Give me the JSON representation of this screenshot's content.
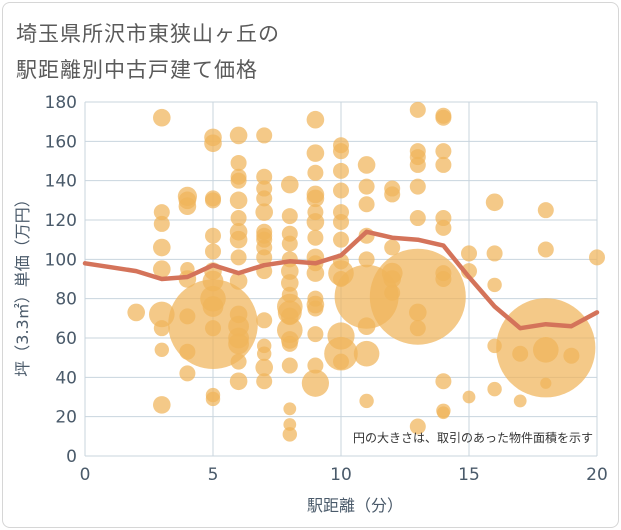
{
  "title_line1": "埼玉県所沢市東狭山ヶ丘の",
  "title_line2": "駅距離別中古戸建て価格",
  "chart_data": {
    "type": "scatter",
    "xlabel": "駅距離（分）",
    "ylabel": "坪（3.3㎡）単価（万円）",
    "note": "円の大きさは、取引のあった物件面積を示す",
    "xlim": [
      0,
      20
    ],
    "ylim": [
      0,
      180
    ],
    "x_ticks": [
      0,
      5,
      10,
      15,
      20
    ],
    "y_ticks": [
      0,
      20,
      40,
      60,
      80,
      100,
      120,
      140,
      160,
      180
    ],
    "grid": true,
    "colors": {
      "bubble": "#f0b45a",
      "trend": "#d4735a",
      "grid": "#c8d4de",
      "axis_text": "#4a5a6a"
    },
    "trend": {
      "x": [
        0,
        1,
        2,
        3,
        4,
        5,
        6,
        7,
        8,
        9,
        10,
        11,
        12,
        13,
        14,
        15,
        16,
        17,
        18,
        19,
        20
      ],
      "y": [
        98,
        96,
        94,
        90,
        91,
        97,
        93,
        97,
        99,
        98,
        102,
        114,
        111,
        110,
        107,
        91,
        76,
        65,
        67,
        66,
        73
      ]
    },
    "points": [
      {
        "x": 2,
        "y": 73,
        "size": 1.1
      },
      {
        "x": 3,
        "y": 172,
        "size": 1.1
      },
      {
        "x": 3,
        "y": 124,
        "size": 1.0
      },
      {
        "x": 3,
        "y": 118,
        "size": 1.0
      },
      {
        "x": 3,
        "y": 106,
        "size": 1.1
      },
      {
        "x": 3,
        "y": 95,
        "size": 1.1
      },
      {
        "x": 3,
        "y": 72,
        "size": 1.6
      },
      {
        "x": 3,
        "y": 65,
        "size": 1.0
      },
      {
        "x": 3,
        "y": 54,
        "size": 0.9
      },
      {
        "x": 3,
        "y": 26,
        "size": 1.1
      },
      {
        "x": 4,
        "y": 132,
        "size": 1.2
      },
      {
        "x": 4,
        "y": 130,
        "size": 1.1
      },
      {
        "x": 4,
        "y": 127,
        "size": 1.1
      },
      {
        "x": 4,
        "y": 95,
        "size": 0.9
      },
      {
        "x": 4,
        "y": 90,
        "size": 1.1
      },
      {
        "x": 4,
        "y": 71,
        "size": 1.0
      },
      {
        "x": 4,
        "y": 53,
        "size": 1.0
      },
      {
        "x": 4,
        "y": 42,
        "size": 1.0
      },
      {
        "x": 5,
        "y": 162,
        "size": 1.1
      },
      {
        "x": 5,
        "y": 159,
        "size": 1.1
      },
      {
        "x": 5,
        "y": 131,
        "size": 1.0
      },
      {
        "x": 5,
        "y": 130,
        "size": 1.0
      },
      {
        "x": 5,
        "y": 112,
        "size": 1.0
      },
      {
        "x": 5,
        "y": 104,
        "size": 1.0
      },
      {
        "x": 5,
        "y": 94,
        "size": 1.1
      },
      {
        "x": 5,
        "y": 89,
        "size": 1.3
      },
      {
        "x": 5,
        "y": 80,
        "size": 1.6
      },
      {
        "x": 5,
        "y": 76,
        "size": 1.3
      },
      {
        "x": 5,
        "y": 67,
        "size": 5.6
      },
      {
        "x": 5,
        "y": 65,
        "size": 1.0
      },
      {
        "x": 5,
        "y": 31,
        "size": 0.9
      },
      {
        "x": 5,
        "y": 29,
        "size": 0.9
      },
      {
        "x": 6,
        "y": 163,
        "size": 1.1
      },
      {
        "x": 6,
        "y": 149,
        "size": 1.0
      },
      {
        "x": 6,
        "y": 142,
        "size": 1.0
      },
      {
        "x": 6,
        "y": 140,
        "size": 1.0
      },
      {
        "x": 6,
        "y": 130,
        "size": 1.1
      },
      {
        "x": 6,
        "y": 121,
        "size": 1.0
      },
      {
        "x": 6,
        "y": 114,
        "size": 1.1
      },
      {
        "x": 6,
        "y": 110,
        "size": 1.1
      },
      {
        "x": 6,
        "y": 101,
        "size": 1.0
      },
      {
        "x": 6,
        "y": 89,
        "size": 1.1
      },
      {
        "x": 6,
        "y": 72,
        "size": 1.1
      },
      {
        "x": 6,
        "y": 66,
        "size": 1.3
      },
      {
        "x": 6,
        "y": 60,
        "size": 1.3
      },
      {
        "x": 6,
        "y": 57,
        "size": 1.3
      },
      {
        "x": 6,
        "y": 48,
        "size": 1.0
      },
      {
        "x": 6,
        "y": 38,
        "size": 1.1
      },
      {
        "x": 7,
        "y": 163,
        "size": 1.0
      },
      {
        "x": 7,
        "y": 142,
        "size": 1.0
      },
      {
        "x": 7,
        "y": 136,
        "size": 1.0
      },
      {
        "x": 7,
        "y": 131,
        "size": 1.0
      },
      {
        "x": 7,
        "y": 124,
        "size": 1.1
      },
      {
        "x": 7,
        "y": 114,
        "size": 1.0
      },
      {
        "x": 7,
        "y": 112,
        "size": 1.0
      },
      {
        "x": 7,
        "y": 110,
        "size": 1.0
      },
      {
        "x": 7,
        "y": 106,
        "size": 1.0
      },
      {
        "x": 7,
        "y": 101,
        "size": 1.0
      },
      {
        "x": 7,
        "y": 94,
        "size": 1.0
      },
      {
        "x": 7,
        "y": 69,
        "size": 1.0
      },
      {
        "x": 7,
        "y": 56,
        "size": 0.9
      },
      {
        "x": 7,
        "y": 52,
        "size": 0.9
      },
      {
        "x": 7,
        "y": 45,
        "size": 1.1
      },
      {
        "x": 7,
        "y": 38,
        "size": 1.0
      },
      {
        "x": 8,
        "y": 138,
        "size": 1.1
      },
      {
        "x": 8,
        "y": 122,
        "size": 1.0
      },
      {
        "x": 8,
        "y": 113,
        "size": 1.0
      },
      {
        "x": 8,
        "y": 108,
        "size": 1.0
      },
      {
        "x": 8,
        "y": 100,
        "size": 1.0
      },
      {
        "x": 8,
        "y": 94,
        "size": 1.1
      },
      {
        "x": 8,
        "y": 88,
        "size": 1.1
      },
      {
        "x": 8,
        "y": 82,
        "size": 1.0
      },
      {
        "x": 8,
        "y": 76,
        "size": 1.6
      },
      {
        "x": 8,
        "y": 73,
        "size": 1.5
      },
      {
        "x": 8,
        "y": 71,
        "size": 1.1
      },
      {
        "x": 8,
        "y": 64,
        "size": 1.6
      },
      {
        "x": 8,
        "y": 59,
        "size": 1.1
      },
      {
        "x": 8,
        "y": 57,
        "size": 1.0
      },
      {
        "x": 8,
        "y": 46,
        "size": 1.0
      },
      {
        "x": 8,
        "y": 24,
        "size": 0.8
      },
      {
        "x": 8,
        "y": 16,
        "size": 0.8
      },
      {
        "x": 8,
        "y": 11,
        "size": 0.9
      },
      {
        "x": 9,
        "y": 171,
        "size": 1.1
      },
      {
        "x": 9,
        "y": 154,
        "size": 1.1
      },
      {
        "x": 9,
        "y": 144,
        "size": 1.0
      },
      {
        "x": 9,
        "y": 133,
        "size": 1.1
      },
      {
        "x": 9,
        "y": 131,
        "size": 1.1
      },
      {
        "x": 9,
        "y": 124,
        "size": 1.0
      },
      {
        "x": 9,
        "y": 119,
        "size": 1.1
      },
      {
        "x": 9,
        "y": 111,
        "size": 1.0
      },
      {
        "x": 9,
        "y": 101,
        "size": 1.1
      },
      {
        "x": 9,
        "y": 98,
        "size": 1.0
      },
      {
        "x": 9,
        "y": 93,
        "size": 1.1
      },
      {
        "x": 9,
        "y": 80,
        "size": 1.0
      },
      {
        "x": 9,
        "y": 77,
        "size": 1.1
      },
      {
        "x": 9,
        "y": 75,
        "size": 1.0
      },
      {
        "x": 9,
        "y": 62,
        "size": 1.0
      },
      {
        "x": 9,
        "y": 46,
        "size": 1.0
      },
      {
        "x": 9,
        "y": 37,
        "size": 1.7
      },
      {
        "x": 10,
        "y": 158,
        "size": 1.0
      },
      {
        "x": 10,
        "y": 155,
        "size": 1.0
      },
      {
        "x": 10,
        "y": 145,
        "size": 1.0
      },
      {
        "x": 10,
        "y": 135,
        "size": 1.0
      },
      {
        "x": 10,
        "y": 124,
        "size": 1.0
      },
      {
        "x": 10,
        "y": 119,
        "size": 1.0
      },
      {
        "x": 10,
        "y": 110,
        "size": 1.0
      },
      {
        "x": 10,
        "y": 99,
        "size": 1.0
      },
      {
        "x": 10,
        "y": 93,
        "size": 1.6
      },
      {
        "x": 10,
        "y": 90,
        "size": 1.0
      },
      {
        "x": 10,
        "y": 61,
        "size": 1.7
      },
      {
        "x": 10,
        "y": 52,
        "size": 2.1
      },
      {
        "x": 10,
        "y": 48,
        "size": 1.0
      },
      {
        "x": 11,
        "y": 148,
        "size": 1.1
      },
      {
        "x": 11,
        "y": 137,
        "size": 1.0
      },
      {
        "x": 11,
        "y": 128,
        "size": 1.0
      },
      {
        "x": 11,
        "y": 112,
        "size": 1.0
      },
      {
        "x": 11,
        "y": 100,
        "size": 1.0
      },
      {
        "x": 11,
        "y": 81,
        "size": 4.0
      },
      {
        "x": 11,
        "y": 66,
        "size": 1.1
      },
      {
        "x": 11,
        "y": 52,
        "size": 1.6
      },
      {
        "x": 11,
        "y": 28,
        "size": 0.9
      },
      {
        "x": 12,
        "y": 136,
        "size": 1.0
      },
      {
        "x": 12,
        "y": 133,
        "size": 1.0
      },
      {
        "x": 12,
        "y": 106,
        "size": 1.0
      },
      {
        "x": 12,
        "y": 93,
        "size": 1.3
      },
      {
        "x": 12,
        "y": 90,
        "size": 1.1
      },
      {
        "x": 12,
        "y": 83,
        "size": 1.0
      },
      {
        "x": 13,
        "y": 176,
        "size": 1.0
      },
      {
        "x": 13,
        "y": 155,
        "size": 1.0
      },
      {
        "x": 13,
        "y": 152,
        "size": 1.0
      },
      {
        "x": 13,
        "y": 148,
        "size": 1.0
      },
      {
        "x": 13,
        "y": 137,
        "size": 1.0
      },
      {
        "x": 13,
        "y": 121,
        "size": 1.0
      },
      {
        "x": 13,
        "y": 81,
        "size": 6.0
      },
      {
        "x": 13,
        "y": 73,
        "size": 1.1
      },
      {
        "x": 13,
        "y": 65,
        "size": 1.0
      },
      {
        "x": 13,
        "y": 15,
        "size": 1.0
      },
      {
        "x": 14,
        "y": 173,
        "size": 1.0
      },
      {
        "x": 14,
        "y": 172,
        "size": 1.0
      },
      {
        "x": 14,
        "y": 155,
        "size": 1.0
      },
      {
        "x": 14,
        "y": 148,
        "size": 1.0
      },
      {
        "x": 14,
        "y": 121,
        "size": 1.0
      },
      {
        "x": 14,
        "y": 116,
        "size": 1.0
      },
      {
        "x": 14,
        "y": 93,
        "size": 1.0
      },
      {
        "x": 14,
        "y": 90,
        "size": 1.0
      },
      {
        "x": 14,
        "y": 38,
        "size": 1.0
      },
      {
        "x": 14,
        "y": 23,
        "size": 0.9
      },
      {
        "x": 14,
        "y": 22,
        "size": 0.8
      },
      {
        "x": 15,
        "y": 103,
        "size": 1.0
      },
      {
        "x": 15,
        "y": 94,
        "size": 1.0
      },
      {
        "x": 15,
        "y": 30,
        "size": 0.8
      },
      {
        "x": 16,
        "y": 129,
        "size": 1.1
      },
      {
        "x": 16,
        "y": 103,
        "size": 1.0
      },
      {
        "x": 16,
        "y": 87,
        "size": 0.9
      },
      {
        "x": 16,
        "y": 56,
        "size": 0.9
      },
      {
        "x": 16,
        "y": 34,
        "size": 0.9
      },
      {
        "x": 17,
        "y": 52,
        "size": 1.0
      },
      {
        "x": 17,
        "y": 28,
        "size": 0.8
      },
      {
        "x": 18,
        "y": 125,
        "size": 1.0
      },
      {
        "x": 18,
        "y": 105,
        "size": 1.0
      },
      {
        "x": 18,
        "y": 55,
        "size": 6.2
      },
      {
        "x": 18,
        "y": 54,
        "size": 1.6
      },
      {
        "x": 18,
        "y": 37,
        "size": 0.7
      },
      {
        "x": 19,
        "y": 51,
        "size": 1.0
      },
      {
        "x": 20,
        "y": 101,
        "size": 1.0
      }
    ]
  }
}
